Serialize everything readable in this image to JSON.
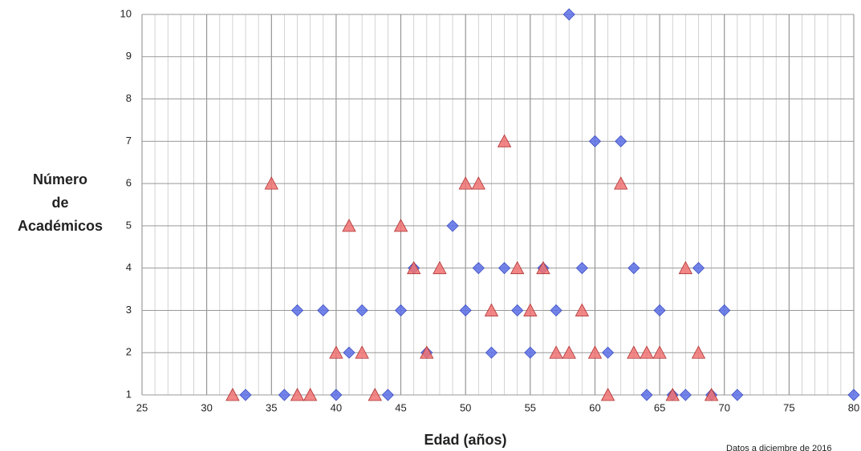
{
  "chart_data": {
    "type": "scatter",
    "xlabel": "Edad (años)",
    "ylabel": [
      "Número",
      "de",
      "Académicos"
    ],
    "note": "Datos a diciembre de 2016",
    "xlim": [
      25,
      80
    ],
    "ylim": [
      1,
      10
    ],
    "xticks": [
      25,
      30,
      35,
      40,
      45,
      50,
      55,
      60,
      65,
      70,
      75,
      80
    ],
    "xminorticks": [
      25,
      26,
      27,
      28,
      29,
      30,
      31,
      32,
      33,
      34,
      35,
      36,
      37,
      38,
      39,
      40,
      41,
      42,
      43,
      44,
      45,
      46,
      47,
      48,
      49,
      50,
      51,
      52,
      53,
      54,
      55,
      56,
      57,
      58,
      59,
      60,
      61,
      62,
      63,
      64,
      65,
      66,
      67,
      68,
      69,
      70,
      71,
      72,
      73,
      74,
      75,
      76,
      77,
      78,
      79,
      80
    ],
    "yticks": [
      1,
      2,
      3,
      4,
      5,
      6,
      7,
      8,
      9,
      10
    ],
    "grid": true,
    "series": [
      {
        "color": "#5b6ee6",
        "marker": "diamond",
        "x": [
          58,
          60,
          62,
          49,
          46,
          51,
          53,
          56,
          59,
          63,
          68,
          37,
          39,
          42,
          45,
          50,
          54,
          57,
          65,
          70,
          41,
          47,
          52,
          55,
          61,
          33,
          36,
          40,
          44,
          64,
          66,
          67,
          69,
          71,
          80
        ],
        "y": [
          10,
          7,
          7,
          5,
          4,
          4,
          4,
          4,
          4,
          4,
          4,
          3,
          3,
          3,
          3,
          3,
          3,
          3,
          3,
          3,
          2,
          2,
          2,
          2,
          2,
          1,
          1,
          1,
          1,
          1,
          1,
          1,
          1,
          1,
          1
        ]
      },
      {
        "color": "#f07272",
        "marker": "triangle",
        "x": [
          53,
          35,
          50,
          51,
          62,
          41,
          45,
          46,
          48,
          54,
          56,
          67,
          52,
          55,
          59,
          40,
          42,
          47,
          57,
          58,
          60,
          63,
          64,
          65,
          68,
          32,
          37,
          38,
          43,
          61,
          66,
          69
        ],
        "y": [
          7,
          6,
          6,
          6,
          6,
          5,
          5,
          4,
          4,
          4,
          4,
          4,
          3,
          3,
          3,
          2,
          2,
          2,
          2,
          2,
          2,
          2,
          2,
          2,
          2,
          1,
          1,
          1,
          1,
          1,
          1,
          1
        ]
      }
    ]
  }
}
